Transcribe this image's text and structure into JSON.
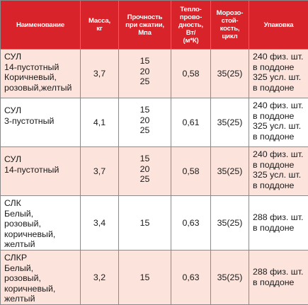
{
  "table": {
    "headers": [
      "Наименование",
      "Масса,\nкг",
      "Прочность\nпри сжатии,\nМпа",
      "Тепло-\nпрово-\nдность,\nВт/\n(м*К)",
      "Морозо-\nстой-\nкость,\nцикл",
      "Упаковка"
    ],
    "rows": [
      {
        "name": "СУЛ\n14-пустотный\nКоричневый,\nрозовый,желтый",
        "mass": "3,7",
        "strength": "15\n20\n25",
        "conductivity": "0,58",
        "frost": "35(25)",
        "packaging": "240 физ. шт.\nв поддоне\n325 усл. шт.\nв поддоне"
      },
      {
        "name": "СУЛ\n3-пустотный",
        "mass": "4,1",
        "strength": "15\n20\n25",
        "conductivity": "0,61",
        "frost": "35(25)",
        "packaging": "240 физ. шт.\nв поддоне\n325 усл. шт.\nв поддоне"
      },
      {
        "name": "СУЛ\n14-пустотный",
        "mass": "3,7",
        "strength": "15\n20\n25",
        "conductivity": "0,58",
        "frost": "35(25)",
        "packaging": "240 физ. шт.\nв поддоне\n325 усл. шт.\nв поддоне"
      },
      {
        "name": "СЛК\nБелый,\nрозовый,\nкоричневый,\nжелтый",
        "mass": "3,4",
        "strength": "15",
        "conductivity": "0,63",
        "frost": "35(25)",
        "packaging": "288 физ. шт.\nв поддоне"
      },
      {
        "name": "СЛКР\nБелый,\nрозовый,\nкоричневый,\nжелтый",
        "mass": "3,2",
        "strength": "15",
        "conductivity": "0,63",
        "frost": "35(25)",
        "packaging": "288 физ. шт.\nв поддоне"
      }
    ]
  },
  "colors": {
    "header_bg": "#d8232a",
    "header_text": "#ffffff",
    "row_odd_bg": "#fce4dc",
    "row_even_bg": "#ffffff",
    "border": "#8a8a8a"
  }
}
